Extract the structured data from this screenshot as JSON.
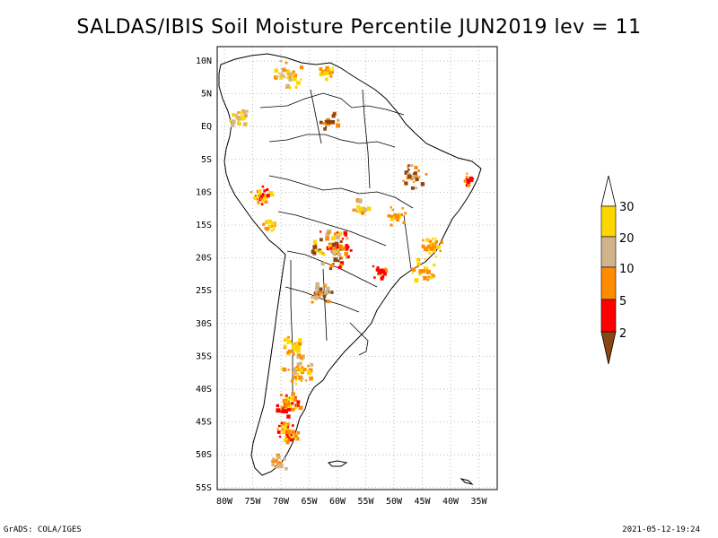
{
  "title": "SALDAS/IBIS Soil Moisture Percentile JUN2019 lev = 11",
  "map": {
    "lat_ticks": [
      "10N",
      "5N",
      "EQ",
      "5S",
      "10S",
      "15S",
      "20S",
      "25S",
      "30S",
      "35S",
      "40S",
      "45S",
      "50S",
      "55S"
    ],
    "lon_ticks": [
      "80W",
      "75W",
      "70W",
      "65W",
      "60W",
      "55W",
      "50W",
      "45W",
      "40W",
      "35W"
    ]
  },
  "legend": {
    "labels": [
      "30",
      "20",
      "10",
      "5",
      "2"
    ],
    "colors": {
      "30": "#ffd700",
      "20": "#d2b48c",
      "10": "#ff8c00",
      "5": "#ff0000",
      "2": "#8b4513"
    }
  },
  "footer": {
    "left": "GrADS: COLA/IGES",
    "right": "2021-05-12-19:24"
  }
}
